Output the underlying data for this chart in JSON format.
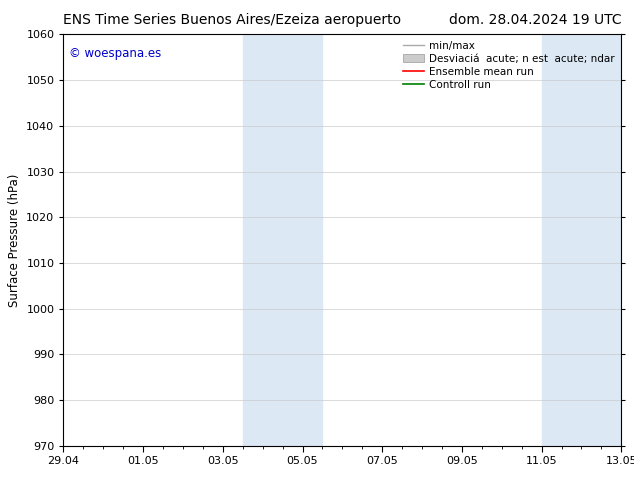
{
  "title_left": "ENS Time Series Buenos Aires/Ezeiza aeropuerto",
  "title_right": "dom. 28.04.2024 19 UTC",
  "ylabel": "Surface Pressure (hPa)",
  "ylim": [
    970,
    1060
  ],
  "yticks": [
    970,
    980,
    990,
    1000,
    1010,
    1020,
    1030,
    1040,
    1050,
    1060
  ],
  "xtick_labels": [
    "29.04",
    "01.05",
    "03.05",
    "05.05",
    "07.05",
    "09.05",
    "11.05",
    "13.05"
  ],
  "xtick_positions": [
    0,
    2,
    4,
    6,
    8,
    10,
    12,
    14
  ],
  "shaded_bands": [
    {
      "x_start": 4.5,
      "x_end": 6.5
    },
    {
      "x_start": 12.0,
      "x_end": 14.0
    }
  ],
  "shaded_color": "#dce9f5",
  "watermark_text": "© woespana.es",
  "watermark_color": "#0000cc",
  "bg_color": "#ffffff",
  "grid_color": "#cccccc",
  "title_fontsize": 10,
  "axis_fontsize": 8.5,
  "tick_fontsize": 8,
  "legend_fontsize": 7.5
}
